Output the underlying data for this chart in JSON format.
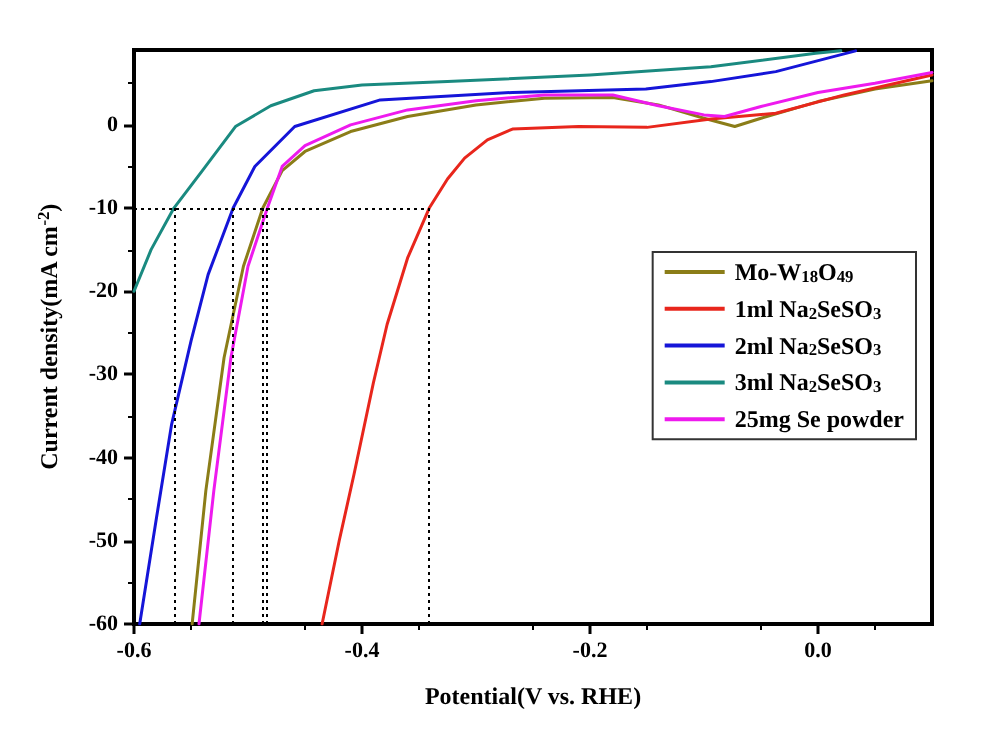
{
  "chart_data": {
    "type": "line",
    "xlabel": "Potential(V vs. RHE)",
    "ylabel": "Current density(mA cm$^{-2}$)",
    "xlim": [
      -0.6,
      0.1
    ],
    "xticks": [
      -0.6,
      -0.4,
      -0.2,
      {
        "value": 0,
        "label": "0.0"
      }
    ],
    "ylim": [
      -60,
      9
    ],
    "yticks": [
      -60,
      -50,
      -40,
      -30,
      -20,
      -10,
      0
    ],
    "grid": false,
    "legend": "right",
    "marker": "none",
    "line_style": "solid",
    "series": [
      {
        "name": "Mo-W$_{18}$O$_{49}$",
        "color": "#8b7d18",
        "x": [
          -0.549,
          -0.537,
          -0.521,
          -0.504,
          -0.487,
          -0.47,
          -0.45,
          -0.41,
          -0.36,
          -0.3,
          -0.24,
          -0.18,
          -0.14,
          -0.1,
          -0.073,
          -0.05,
          0.0,
          0.05,
          0.1
        ],
        "values": [
          -60,
          -44,
          -28,
          -17,
          -10,
          -5.5,
          -3.2,
          -0.8,
          1.0,
          2.4,
          3.2,
          3.3,
          2.4,
          0.8,
          -0.2,
          0.8,
          2.8,
          4.3,
          5.3
        ]
      },
      {
        "name": "1ml Na$_{2}$SeSO$_{3}$",
        "color": "#e8261c",
        "x": [
          -0.435,
          -0.42,
          -0.407,
          -0.39,
          -0.378,
          -0.36,
          -0.341,
          -0.325,
          -0.31,
          -0.29,
          -0.268,
          -0.21,
          -0.15,
          -0.094,
          -0.037,
          0.023,
          0.1
        ],
        "values": [
          -60,
          -50,
          -42,
          -31,
          -24,
          -16,
          -10,
          -6.5,
          -4,
          -1.8,
          -0.5,
          -0.2,
          -0.3,
          0.7,
          1.4,
          3.6,
          6
        ]
      },
      {
        "name": "2ml Na$_{2}$SeSO$_{3}$",
        "color": "#1515d8",
        "x": [
          -0.595,
          -0.58,
          -0.567,
          -0.55,
          -0.535,
          -0.513,
          -0.494,
          -0.459,
          -0.384,
          -0.268,
          -0.151,
          -0.094,
          -0.037,
          0.033
        ],
        "values": [
          -60,
          -47,
          -36,
          -26,
          -18,
          -10,
          -5,
          -0.2,
          3.0,
          3.9,
          4.3,
          5.2,
          6.4,
          8.9
        ]
      },
      {
        "name": "3ml Na$_{2}$SeSO$_{3}$",
        "color": "#1a8a80",
        "x": [
          -0.6,
          -0.585,
          -0.565,
          -0.54,
          -0.511,
          -0.48,
          -0.442,
          -0.4,
          -0.325,
          -0.2,
          -0.094,
          -0.002,
          0.02
        ],
        "values": [
          -20,
          -15,
          -10,
          -5.5,
          -0.2,
          2.3,
          4.1,
          4.8,
          5.2,
          6.0,
          7.0,
          8.6,
          8.9
        ]
      },
      {
        "name": "25mg Se powder",
        "color": "#ee1aee",
        "x": [
          -0.543,
          -0.53,
          -0.515,
          -0.5,
          -0.483,
          -0.47,
          -0.45,
          -0.41,
          -0.36,
          -0.3,
          -0.24,
          -0.18,
          -0.14,
          -0.1,
          -0.082,
          -0.05,
          0.0,
          0.05,
          0.1
        ],
        "values": [
          -60,
          -44,
          -28,
          -17,
          -10,
          -5,
          -2.5,
          0,
          1.8,
          2.9,
          3.6,
          3.6,
          2.3,
          1.2,
          1.0,
          2.2,
          3.9,
          5.0,
          6.3
        ]
      }
    ],
    "ref_lines": [
      {
        "axis": "x",
        "value": -0.565,
        "color": "#000000",
        "line_style": "dotted"
      },
      {
        "axis": "x",
        "value": -0.513,
        "color": "#000000",
        "line_style": "dotted"
      },
      {
        "axis": "x",
        "value": -0.487,
        "color": "#000000",
        "line_style": "dotted"
      },
      {
        "axis": "x",
        "value": -0.483,
        "color": "#000000",
        "line_style": "dotted"
      },
      {
        "axis": "x",
        "value": -0.341,
        "color": "#000000",
        "line_style": "dotted"
      },
      {
        "axis": "y",
        "value": -10,
        "color": "#000000",
        "line_style": "dotted"
      }
    ]
  }
}
